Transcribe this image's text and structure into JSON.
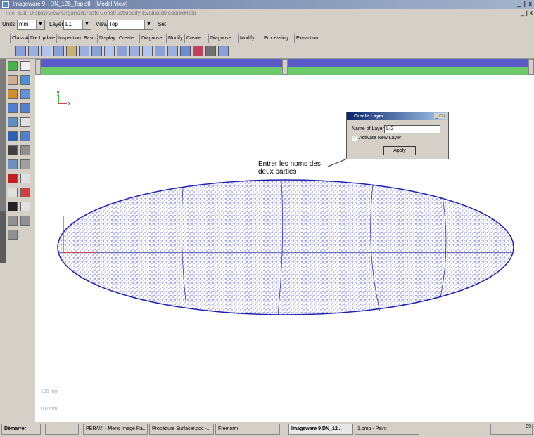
{
  "window": {
    "title": "Imageware 9 - DN_128_Top.stl - [Model View]",
    "controls": "_ | x",
    "menu": [
      "File",
      "Edit",
      "Display",
      "View",
      "Organize",
      "Create",
      "Construct",
      "Modify",
      "Evaluate",
      "Measure",
      "Help"
    ]
  },
  "units_bar": {
    "units_label": "Units",
    "units_value": "mm",
    "layers_label": "Layers",
    "layers_value": "L1",
    "views_label": "Views",
    "views_value": "Top",
    "set_label": "Set"
  },
  "tabs": [
    "Class A",
    "Die Update",
    "Inspection",
    "Basic",
    "Display",
    "Create",
    "Diagnose",
    "Modify",
    "Create",
    "Diagnose",
    "Modify",
    "Processing",
    "Extraction"
  ],
  "dialog": {
    "title": "Create Layer",
    "controls": "_ □ x",
    "name_label": "Name of Layer",
    "name_value": "L-2",
    "activate_label": "Activate New Layer",
    "activate_checked": true,
    "apply_label": "Apply"
  },
  "annotation": {
    "text": "Entrer les noms des deux parties"
  },
  "viewport": {
    "axis_x": "x",
    "axis_y": "y",
    "scale_top": "100 mm",
    "scale_bottom": "0.0 mm",
    "colors": {
      "points": "#2b2bd8",
      "top_bar": "#5a5ac8",
      "green_bar": "#6bc86b"
    }
  },
  "taskbar": {
    "start_label": "Démarrer",
    "items": [
      "PERAVI - Meris Image Ra...",
      "Procédure Surfacer.doc -...",
      "Freeform",
      "Imageware 9  DN_12...",
      "1.bmp - Paint"
    ],
    "clock": "09"
  }
}
